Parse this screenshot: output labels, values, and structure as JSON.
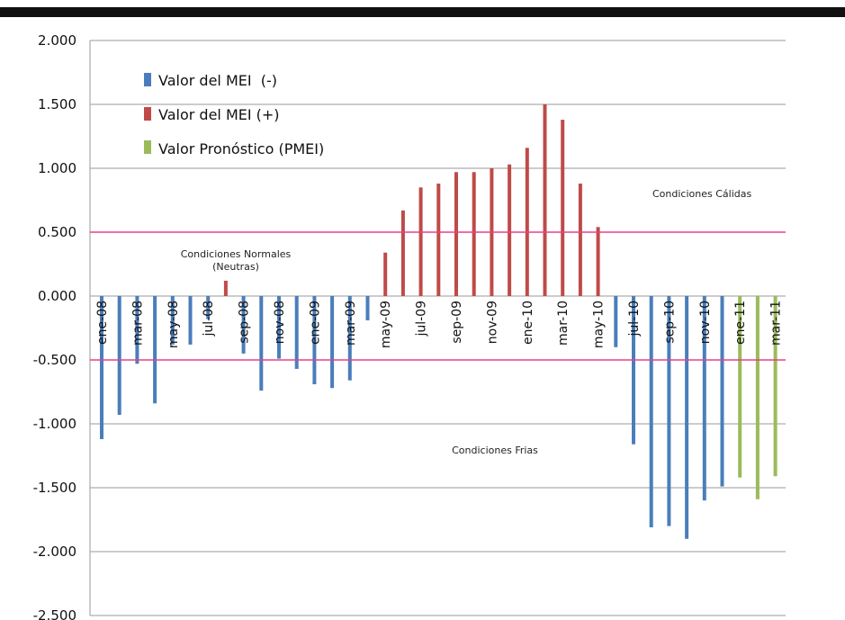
{
  "colors": {
    "negative": "#4A7EBB",
    "positive": "#BE4B48",
    "forecast": "#9BBB59",
    "threshold": "#E8408A",
    "grid": "#9A9A9A",
    "top_bar": "#111111"
  },
  "chart_data": {
    "type": "bar",
    "ylim": [
      -2.5,
      2.0
    ],
    "yticks": [
      2.0,
      1.5,
      1.0,
      0.5,
      0.0,
      -0.5,
      -1.0,
      -1.5,
      -2.0,
      -2.5
    ],
    "ytick_labels": [
      "2.000",
      "1.500",
      "1.000",
      "0.500",
      "0.000",
      "-0.500",
      "-1.000",
      "-1.500",
      "-2.000",
      "-2.500"
    ],
    "grid": true,
    "legend_position": "top-left",
    "thresholds": [
      0.5,
      -0.5
    ],
    "categories": [
      "ene-08",
      "feb-08",
      "mar-08",
      "abr-08",
      "may-08",
      "jun-08",
      "jul-08",
      "ago-08",
      "sep-08",
      "oct-08",
      "nov-08",
      "dic-08",
      "ene-09",
      "feb-09",
      "mar-09",
      "abr-09",
      "may-09",
      "jun-09",
      "jul-09",
      "ago-09",
      "sep-09",
      "oct-09",
      "nov-09",
      "dic-09",
      "ene-10",
      "feb-10",
      "mar-10",
      "abr-10",
      "may-10",
      "jun-10",
      "jul-10",
      "ago-10",
      "sep-10",
      "oct-10",
      "nov-10",
      "dic-10",
      "ene-11",
      "feb-11",
      "mar-11"
    ],
    "category_labels": [
      "ene-08",
      "",
      "mar-08",
      "",
      "may-08",
      "",
      "jul-08",
      "",
      "sep-08",
      "",
      "nov-08",
      "",
      "ene-09",
      "",
      "mar-09",
      "",
      "may-09",
      "",
      "jul-09",
      "",
      "sep-09",
      "",
      "nov-09",
      "",
      "ene-10",
      "",
      "mar-10",
      "",
      "may-10",
      "",
      "jul-10",
      "",
      "sep-10",
      "",
      "nov-10",
      "",
      "ene-11",
      "",
      "mar-11"
    ],
    "series": [
      {
        "name": "Valor del MEI  (-)",
        "color_key": "negative",
        "values": [
          -1.12,
          -0.93,
          -0.53,
          -0.84,
          -0.38,
          -0.38,
          -0.18,
          null,
          -0.45,
          -0.74,
          -0.49,
          -0.57,
          -0.69,
          -0.72,
          -0.66,
          -0.19,
          null,
          null,
          null,
          null,
          null,
          null,
          null,
          null,
          null,
          null,
          null,
          null,
          null,
          -0.4,
          -1.16,
          -1.81,
          -1.8,
          -1.9,
          -1.6,
          -1.49,
          null,
          null,
          null
        ]
      },
      {
        "name": "Valor del MEI (+)",
        "color_key": "positive",
        "values": [
          null,
          null,
          null,
          null,
          null,
          null,
          null,
          0.12,
          null,
          null,
          null,
          null,
          null,
          null,
          null,
          null,
          0.34,
          0.67,
          0.85,
          0.88,
          0.97,
          0.97,
          1.0,
          1.03,
          1.16,
          1.5,
          1.38,
          0.88,
          0.54,
          null,
          null,
          null,
          null,
          null,
          null,
          null,
          null,
          null,
          null
        ]
      },
      {
        "name": "Valor Pronóstico (PMEI)",
        "color_key": "forecast",
        "values": [
          null,
          null,
          null,
          null,
          null,
          null,
          null,
          null,
          null,
          null,
          null,
          null,
          null,
          null,
          null,
          null,
          null,
          null,
          null,
          null,
          null,
          null,
          null,
          null,
          null,
          null,
          null,
          null,
          null,
          null,
          null,
          null,
          null,
          null,
          null,
          null,
          -1.42,
          -1.59,
          -1.41
        ]
      }
    ],
    "annotations": {
      "warm": "Condiciones Cálidas",
      "normal_line1": "Condiciones Normales",
      "normal_line2": "(Neutras)",
      "cold": "Condiciones Frias"
    }
  }
}
